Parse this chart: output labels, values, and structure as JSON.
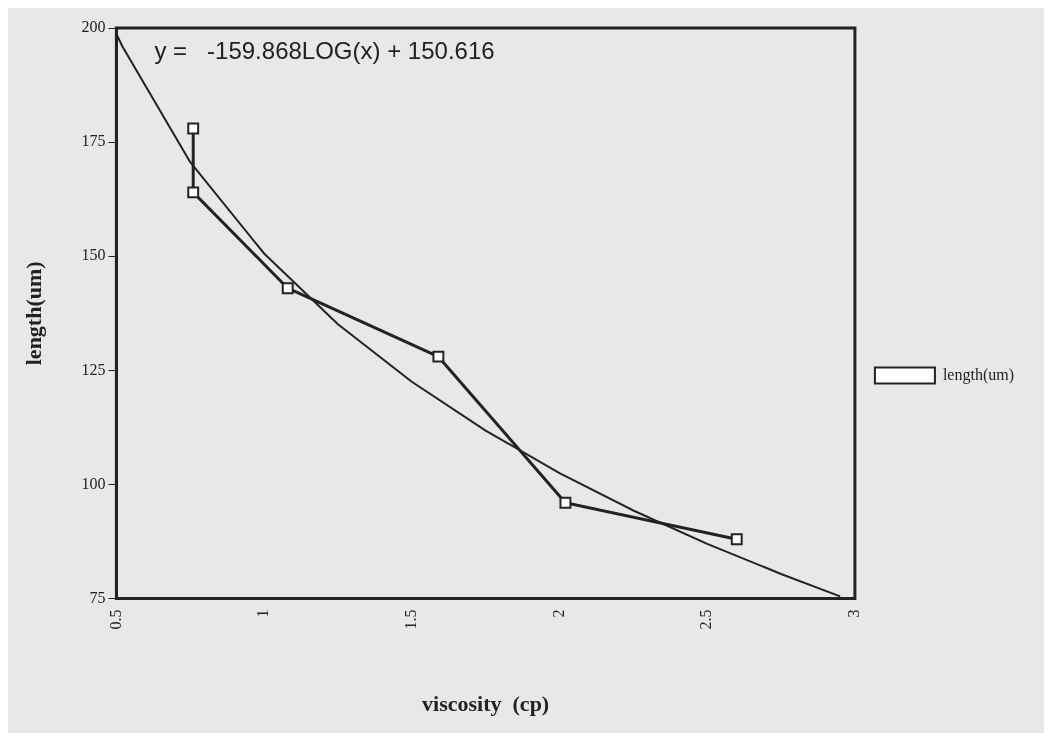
{
  "chart_data": {
    "type": "line",
    "xlabel": "viscosity  (cp)",
    "ylabel": "length(um)",
    "annotations": [
      "y =   -159.868LOG(x) + 150.616"
    ],
    "xlim": [
      0.5,
      3
    ],
    "xticks": [
      0.5,
      1,
      1.5,
      2,
      2.5,
      3
    ],
    "ylim": [
      75,
      200
    ],
    "yticks": [
      75,
      100,
      125,
      150,
      175,
      200
    ],
    "grid": false,
    "legend": "right",
    "marker": "square",
    "line_style": "solid",
    "series": [
      {
        "name": "length(um)",
        "color": "#222222",
        "x": [
          0.76,
          0.76,
          1.08,
          1.59,
          2.02,
          2.6
        ],
        "values": [
          178,
          164,
          143,
          128,
          96,
          88
        ]
      },
      {
        "type": "line",
        "color": "#222222",
        "marker": "none",
        "x": [
          0.5,
          0.52,
          0.75,
          1,
          1.25,
          1.5,
          1.75,
          2,
          2.25,
          2.5,
          2.75,
          2.95
        ],
        "values": [
          198.7,
          196,
          170.6,
          150.6,
          135.1,
          122.5,
          111.8,
          102.5,
          94.3,
          87,
          80.4,
          75.5
        ]
      }
    ]
  }
}
